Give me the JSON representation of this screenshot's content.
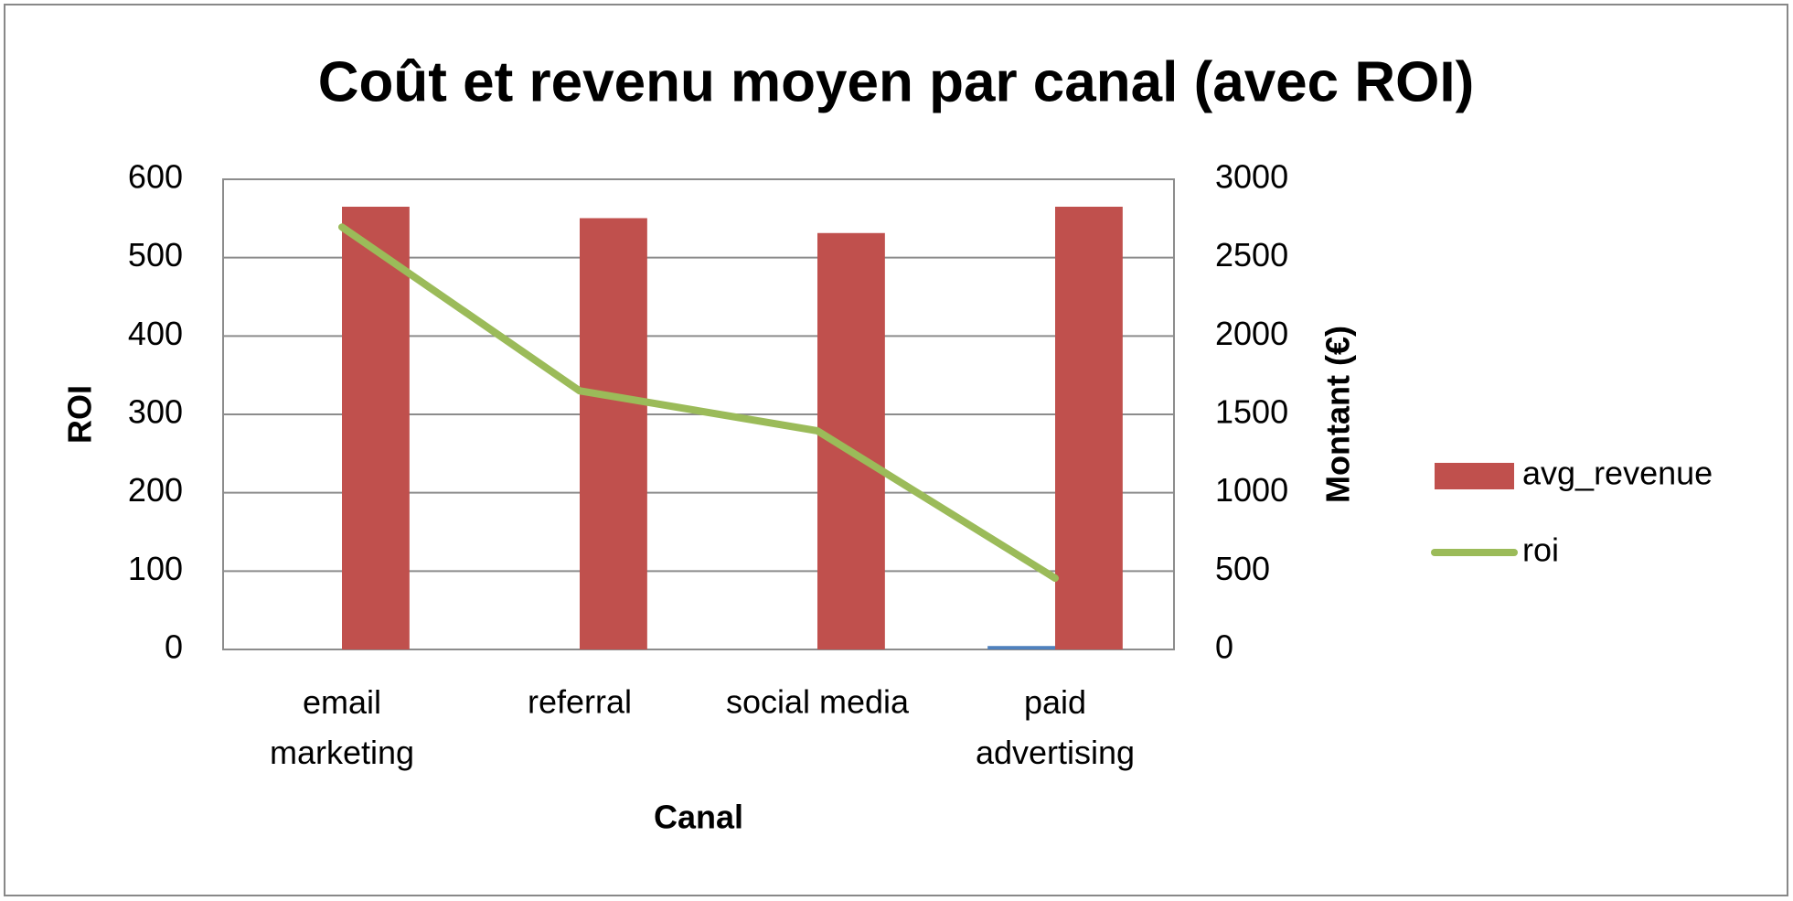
{
  "chart_data": {
    "type": "bar_line",
    "title": "Coût et revenu moyen par canal (avec ROI)",
    "x_label": "Canal",
    "y_label": "ROI",
    "y2_label": "Montant (€)",
    "categories": [
      "email marketing",
      "referral",
      "social media",
      "paid advertising"
    ],
    "series": [
      {
        "color": "#4f81bd",
        "type": "bar",
        "axis": "y2",
        "values": [
          0,
          0,
          0,
          22
        ]
      },
      {
        "name": "avg_revenue",
        "color": "#c0504d",
        "type": "bar",
        "axis": "y2",
        "values": [
          2825,
          2752,
          2657,
          2825
        ]
      },
      {
        "name": "roi",
        "color": "#9bbb59",
        "type": "line",
        "axis": "y",
        "values": [
          539,
          330,
          279,
          91
        ]
      }
    ],
    "ylim": [
      0,
      600
    ],
    "yticks": [
      0,
      100,
      200,
      300,
      400,
      500,
      600
    ],
    "y2lim": [
      0,
      3000
    ],
    "y2ticks": [
      0,
      500,
      1000,
      1500,
      2000,
      2500,
      3000
    ],
    "grid": true,
    "legend": "right"
  }
}
